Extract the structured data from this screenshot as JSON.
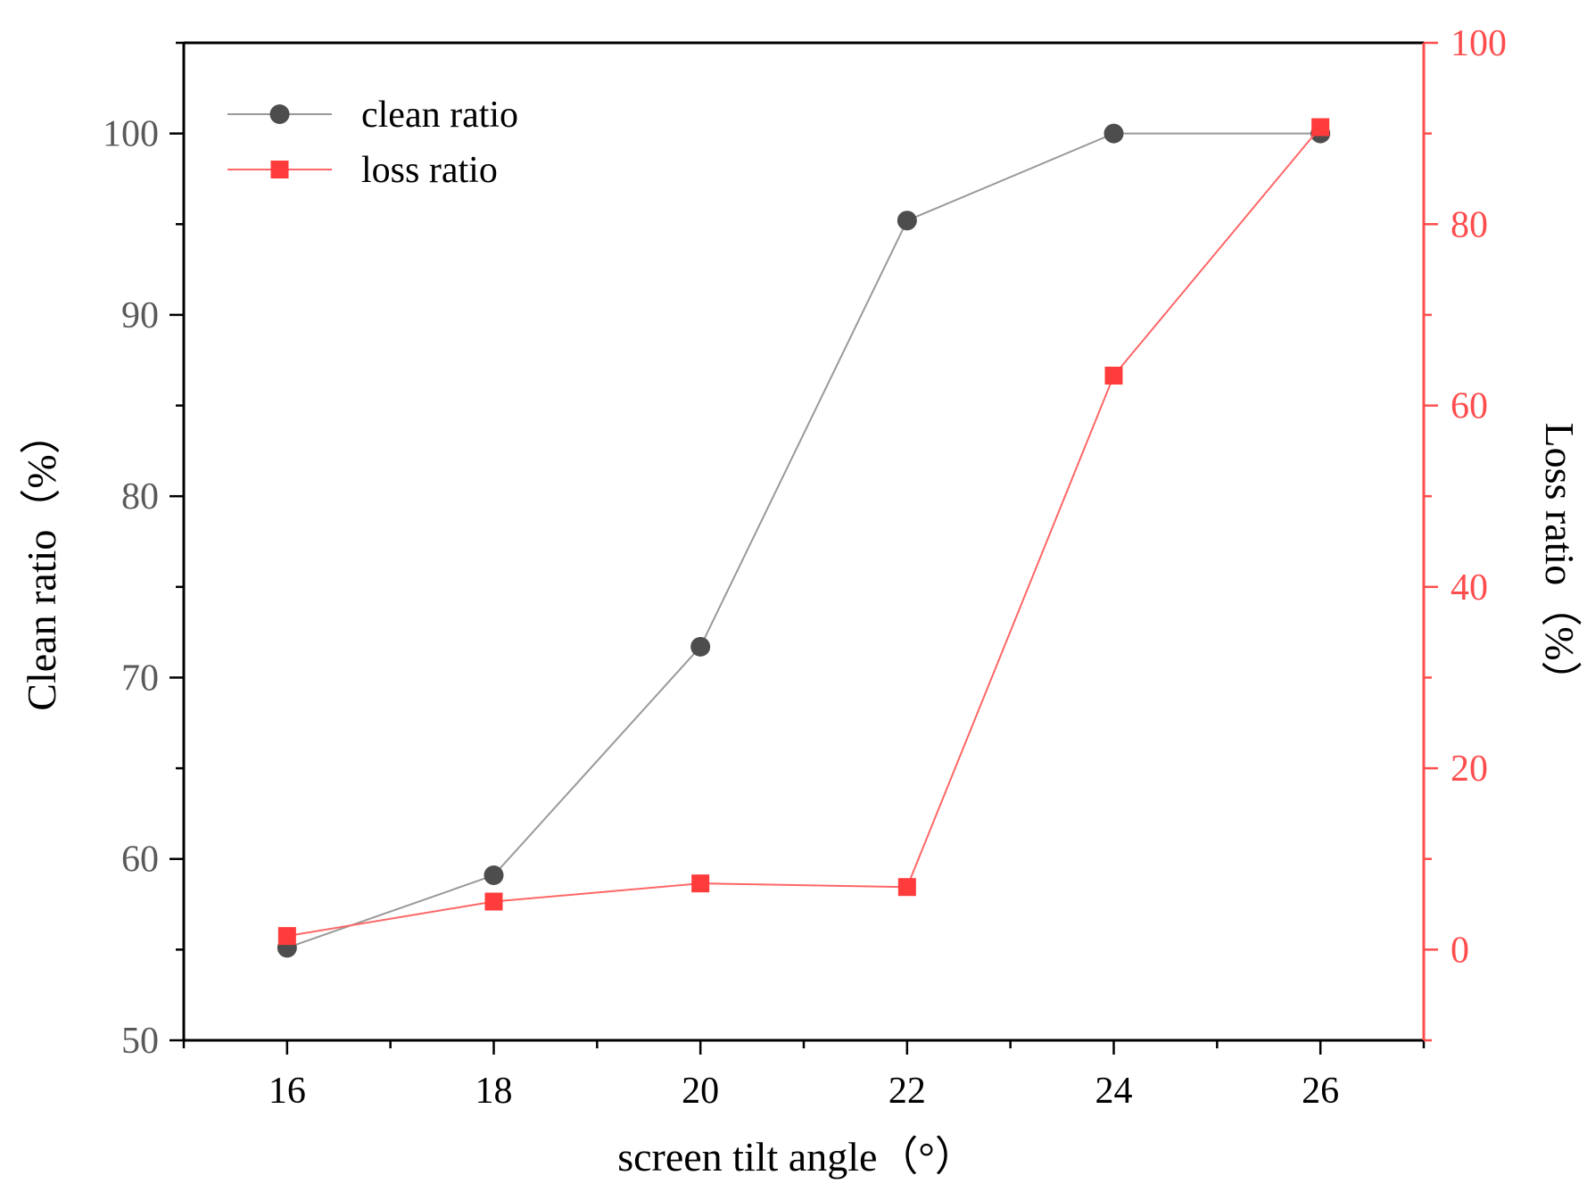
{
  "chart_data": {
    "type": "line",
    "title": "",
    "xlabel": "screen tilt angle（°）",
    "ylabel_left": "Clean ratio（%）",
    "ylabel_right": "Loss ratio（%）",
    "xlim": [
      15,
      27
    ],
    "ylim_left": [
      50,
      105
    ],
    "ylim_right": [
      -10,
      100
    ],
    "x_ticks": [
      16,
      18,
      20,
      22,
      24,
      26
    ],
    "y_ticks_left": [
      50,
      60,
      70,
      80,
      90,
      100
    ],
    "y_ticks_right": [
      0,
      20,
      40,
      60,
      80,
      100
    ],
    "grid": false,
    "legend_position": "top-left",
    "x": [
      16,
      18,
      20,
      22,
      24,
      26
    ],
    "series": [
      {
        "name": "clean ratio",
        "axis": "left",
        "marker": "circle",
        "color": "#4d4d4d",
        "line_color": "#999999",
        "values": [
          55.1,
          59.1,
          71.7,
          95.2,
          100,
          100
        ]
      },
      {
        "name": "loss ratio",
        "axis": "right",
        "marker": "square",
        "color": "#ff3b3b",
        "line_color": "#ff6666",
        "values": [
          1.5,
          5.3,
          7.3,
          6.9,
          63.3,
          90.7
        ]
      }
    ],
    "colors": {
      "left_axis": "#000000",
      "left_tick_labels": "#595959",
      "right_axis": "#ff4d4d",
      "right_tick_labels": "#ff4d4d"
    }
  }
}
